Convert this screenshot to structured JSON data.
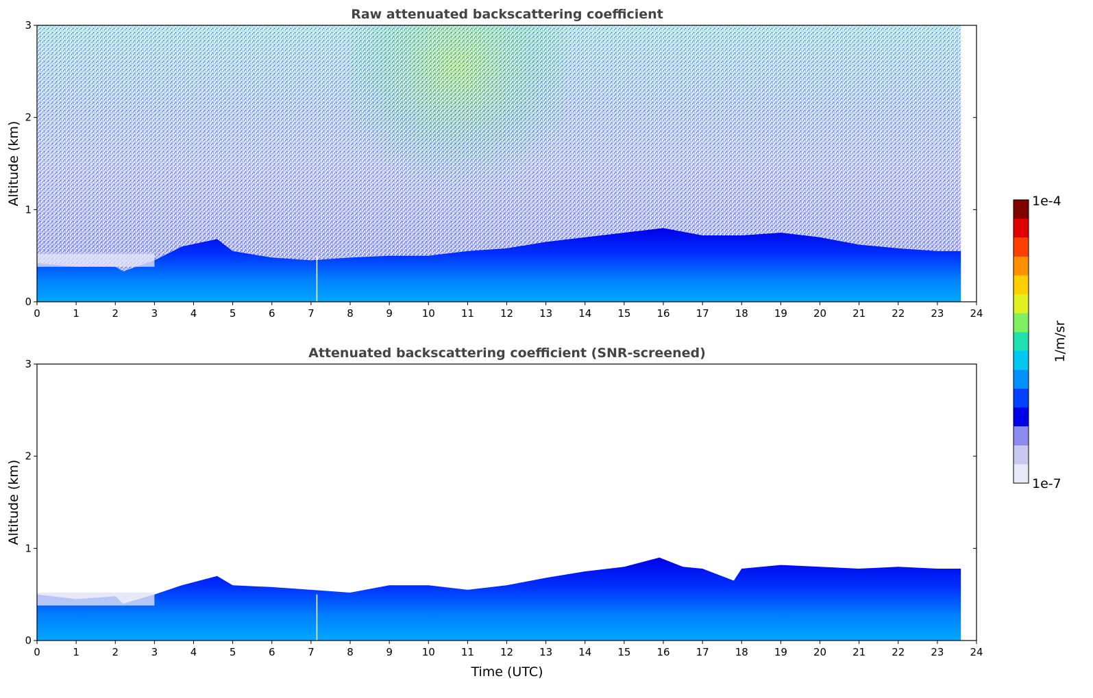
{
  "chart_data": [
    {
      "type": "heatmap",
      "title": "Raw attenuated backscattering coefficient",
      "xlabel": "",
      "ylabel": "Altitude (km)",
      "xlim": [
        0,
        24
      ],
      "ylim": [
        0,
        3
      ],
      "x_ticks": [
        "0",
        "1",
        "2",
        "3",
        "4",
        "5",
        "6",
        "7",
        "8",
        "9",
        "10",
        "11",
        "12",
        "13",
        "14",
        "15",
        "16",
        "17",
        "18",
        "19",
        "20",
        "21",
        "22",
        "23",
        "24"
      ],
      "y_ticks": [
        "0",
        "1",
        "2",
        "3"
      ],
      "data_end_time": 23.6,
      "data_gap_time": 7.15,
      "boundary_layer_top_km": [
        [
          0,
          0.42
        ],
        [
          1,
          0.38
        ],
        [
          2,
          0.38
        ],
        [
          2.2,
          0.33
        ],
        [
          3,
          0.45
        ],
        [
          3.7,
          0.6
        ],
        [
          4.6,
          0.68
        ],
        [
          5,
          0.55
        ],
        [
          6,
          0.48
        ],
        [
          7,
          0.45
        ],
        [
          8,
          0.48
        ],
        [
          9,
          0.5
        ],
        [
          10,
          0.5
        ],
        [
          11,
          0.55
        ],
        [
          12,
          0.58
        ],
        [
          13,
          0.65
        ],
        [
          14,
          0.7
        ],
        [
          15,
          0.75
        ],
        [
          16,
          0.8
        ],
        [
          17,
          0.72
        ],
        [
          18,
          0.72
        ],
        [
          19,
          0.75
        ],
        [
          20,
          0.7
        ],
        [
          21,
          0.62
        ],
        [
          22,
          0.58
        ],
        [
          23,
          0.55
        ],
        [
          23.6,
          0.55
        ]
      ],
      "noise_description": "above boundary layer: noisy speckle, green/yellow strongest 8.5-13 UTC near 2.5-3 km",
      "grid": false
    },
    {
      "type": "heatmap",
      "title": "Attenuated backscattering coefficient (SNR-screened)",
      "xlabel": "Time (UTC)",
      "ylabel": "Altitude (km)",
      "xlim": [
        0,
        24
      ],
      "ylim": [
        0,
        3
      ],
      "x_ticks": [
        "0",
        "1",
        "2",
        "3",
        "4",
        "5",
        "6",
        "7",
        "8",
        "9",
        "10",
        "11",
        "12",
        "13",
        "14",
        "15",
        "16",
        "17",
        "18",
        "19",
        "20",
        "21",
        "22",
        "23",
        "24"
      ],
      "y_ticks": [
        "0",
        "1",
        "2",
        "3"
      ],
      "data_end_time": 23.6,
      "data_gap_time": 7.15,
      "boundary_layer_top_km": [
        [
          0,
          0.5
        ],
        [
          1,
          0.45
        ],
        [
          2,
          0.48
        ],
        [
          2.2,
          0.4
        ],
        [
          3,
          0.5
        ],
        [
          3.7,
          0.6
        ],
        [
          4.6,
          0.7
        ],
        [
          5,
          0.6
        ],
        [
          6,
          0.58
        ],
        [
          7,
          0.55
        ],
        [
          8,
          0.52
        ],
        [
          9,
          0.6
        ],
        [
          10,
          0.6
        ],
        [
          11,
          0.55
        ],
        [
          12,
          0.6
        ],
        [
          13,
          0.68
        ],
        [
          14,
          0.75
        ],
        [
          15,
          0.8
        ],
        [
          15.9,
          0.9
        ],
        [
          16.5,
          0.8
        ],
        [
          17,
          0.78
        ],
        [
          17.8,
          0.65
        ],
        [
          18,
          0.78
        ],
        [
          19,
          0.82
        ],
        [
          20,
          0.8
        ],
        [
          21,
          0.78
        ],
        [
          22,
          0.8
        ],
        [
          23,
          0.78
        ],
        [
          23.6,
          0.78
        ]
      ],
      "grid": false
    }
  ],
  "colorbar": {
    "min_label": "1e-7",
    "max_label": "1e-4",
    "label": "1/m/sr",
    "colormap": [
      "#e8e8f8",
      "#c8c8f0",
      "#8c8cf0",
      "#0000e8",
      "#0040ff",
      "#0090ff",
      "#00c8f0",
      "#20e0b0",
      "#80f060",
      "#e0f020",
      "#ffd000",
      "#ff9000",
      "#ff4000",
      "#e00000",
      "#800000"
    ]
  }
}
